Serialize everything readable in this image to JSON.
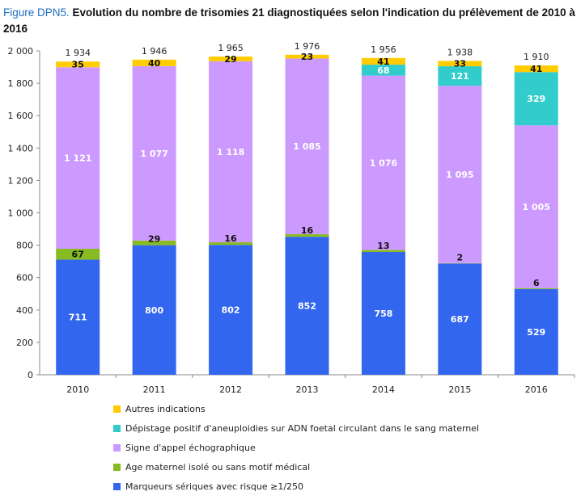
{
  "title": {
    "prefix": "Figure DPN5.",
    "text": "Evolution du nombre de trisomies 21 diagnostiquées selon l'indication du prélèvement de 2010 à 2016"
  },
  "chart_data": {
    "type": "bar",
    "stacked": true,
    "categories": [
      "2010",
      "2011",
      "2012",
      "2013",
      "2014",
      "2015",
      "2016"
    ],
    "ylim": [
      0,
      2000
    ],
    "yticks": [
      0,
      200,
      400,
      600,
      800,
      1000,
      1200,
      1400,
      1600,
      1800,
      2000
    ],
    "ytick_labels": [
      "0",
      "200",
      "400",
      "600",
      "800",
      "1 000",
      "1 200",
      "1 400",
      "1 600",
      "1 800",
      "2 000"
    ],
    "grid": false,
    "legend_position": "bottom",
    "series": [
      {
        "name": "Marqueurs sériques avec risque ≥1/250",
        "color": "#3366ee",
        "label_color": "#ffffff",
        "values": [
          711,
          800,
          802,
          852,
          758,
          687,
          529
        ],
        "labels": [
          "711",
          "800",
          "802",
          "852",
          "758",
          "687",
          "529"
        ]
      },
      {
        "name": "Age maternel isolé ou sans motif médical",
        "color": "#88bb22",
        "label_color": "#111111",
        "values": [
          67,
          29,
          16,
          16,
          13,
          2,
          6
        ],
        "labels": [
          "67",
          "29",
          "16",
          "16",
          "13",
          "2",
          "6"
        ]
      },
      {
        "name": "Signe d'appel échographique",
        "color": "#cc99ff",
        "label_color": "#ffffff",
        "values": [
          1121,
          1077,
          1118,
          1085,
          1076,
          1095,
          1005
        ],
        "labels": [
          "1 121",
          "1 077",
          "1 118",
          "1 085",
          "1 076",
          "1 095",
          "1 005"
        ]
      },
      {
        "name": "Dépistage positif d'aneuploidies sur ADN foetal circulant dans le sang maternel",
        "color": "#33cccc",
        "label_color": "#ffffff",
        "values": [
          0,
          0,
          0,
          0,
          68,
          121,
          329
        ],
        "labels": [
          "",
          "",
          "",
          "",
          "68",
          "121",
          "329"
        ]
      },
      {
        "name": "Autres indications",
        "color": "#ffcc00",
        "label_color": "#111111",
        "values": [
          35,
          40,
          29,
          23,
          41,
          33,
          41
        ],
        "labels": [
          "35",
          "40",
          "29",
          "23",
          "41",
          "33",
          "41"
        ]
      }
    ],
    "totals": [
      "1 934",
      "1 946",
      "1 965",
      "1 976",
      "1 956",
      "1 938",
      "1 910"
    ]
  }
}
